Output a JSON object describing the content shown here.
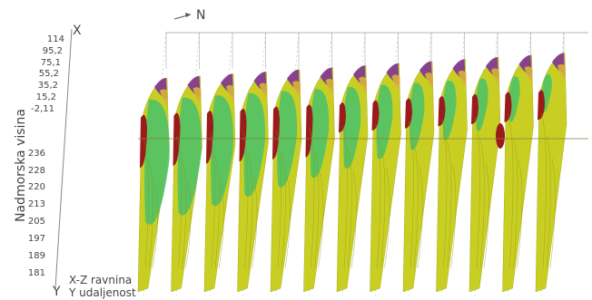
{
  "axis_x_label": "X",
  "axis_y_label": "Y",
  "north_label": "N",
  "vertical_axis_label": "Nadmorska visina",
  "x_ticks": [
    "114",
    "95,2",
    "75,1",
    "55,2",
    "35,2",
    "15,2",
    "-2,11"
  ],
  "z_ticks": [
    "236",
    "228",
    "220",
    "213",
    "205",
    "197",
    "189",
    "181"
  ],
  "caption_line1": "X-Z ravnina",
  "caption_line2": "Y udaljenost",
  "slice_count": 13,
  "colors": {
    "base": "#c9cf22",
    "green": "#4fc166",
    "red": "#9b1a1a",
    "purple": "#7a2a9a",
    "gold": "#d8b23a",
    "frame": "#9a9a9a"
  }
}
